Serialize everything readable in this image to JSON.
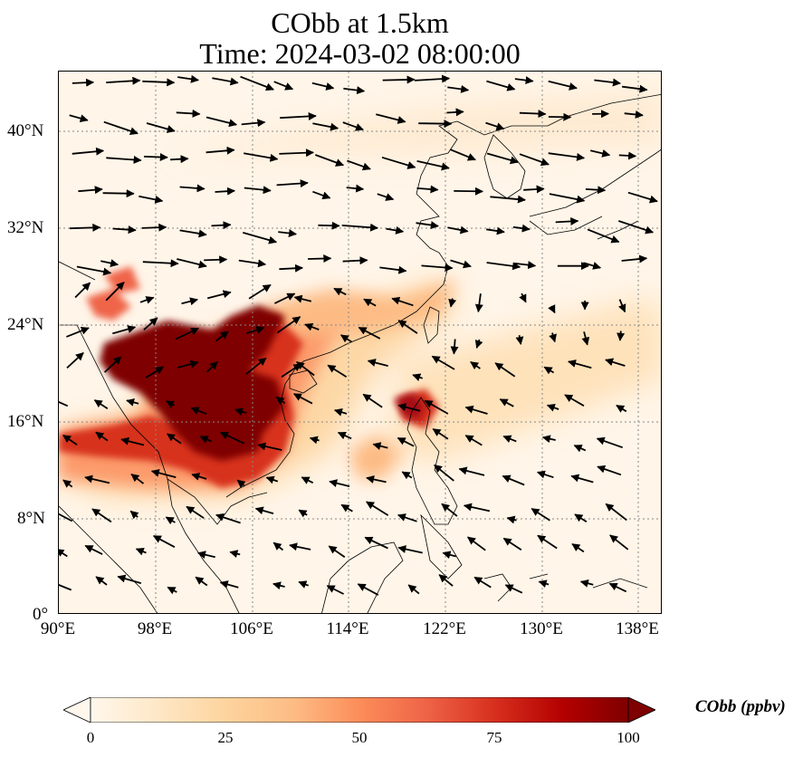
{
  "title": {
    "line1": "CObb at 1.5km",
    "line2": "Time: 2024-03-02 08:00:00"
  },
  "axes": {
    "x_ticks": [
      "90°E",
      "98°E",
      "106°E",
      "114°E",
      "122°E",
      "130°E",
      "138°E"
    ],
    "y_ticks": [
      "40°N",
      "32°N",
      "24°N",
      "16°N",
      "8°N",
      "0°"
    ],
    "lon_range": [
      90,
      140
    ],
    "lat_range": [
      0,
      45
    ]
  },
  "colorbar": {
    "label": "CObb (ppbv)",
    "ticks": [
      "0",
      "25",
      "50",
      "75",
      "100"
    ],
    "range": [
      0,
      100
    ],
    "colormap": "OrRd",
    "colors": [
      "#fff7ec",
      "#fee8c8",
      "#fdd49e",
      "#fdbb84",
      "#fc8d59",
      "#ef6548",
      "#d7301f",
      "#b30000",
      "#7f0000"
    ],
    "extend": "both"
  },
  "map": {
    "background_color": "#fff5e8",
    "gridlines": "dotted",
    "features": [
      "coastlines",
      "wind-vectors"
    ],
    "high_concentration_region": "Indochina peninsula (Myanmar, Thailand, Laos, Cambodia, Vietnam)",
    "secondary_plume": "northern Luzon, Philippines"
  }
}
